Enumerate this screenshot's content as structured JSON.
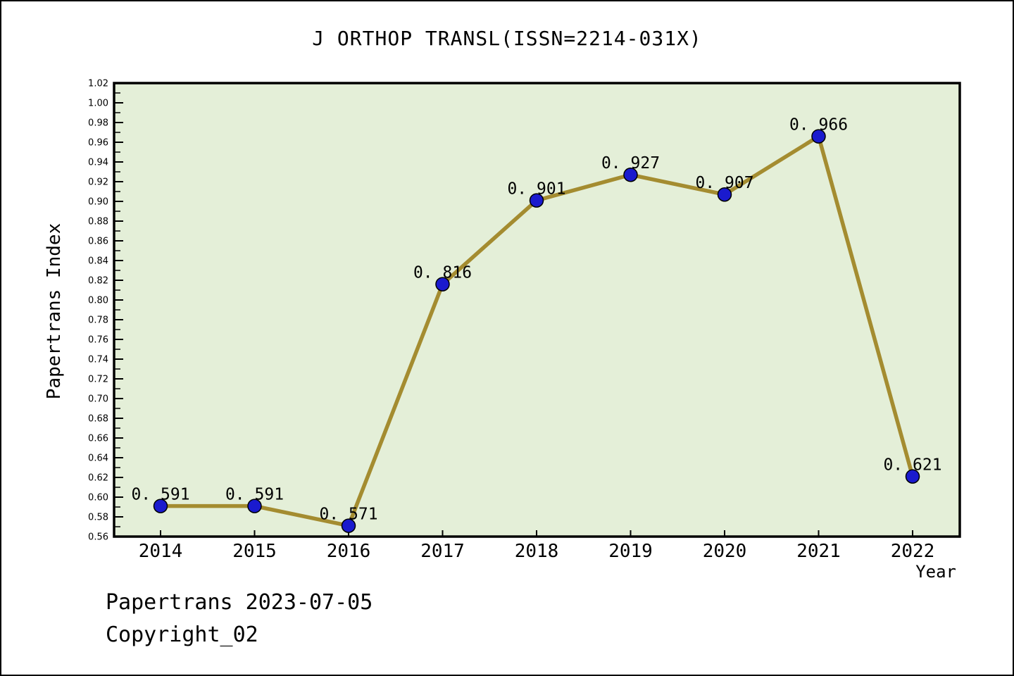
{
  "title": "J ORTHOP TRANSL(ISSN=2214-031X)",
  "footer": {
    "line1": "Papertrans 2023-07-05",
    "line2": "Copyright_02"
  },
  "chart_data": {
    "type": "line",
    "title": "J ORTHOP TRANSL(ISSN=2214-031X)",
    "xlabel": "Year",
    "ylabel": "Papertrans Index",
    "categories": [
      "2014",
      "2015",
      "2016",
      "2017",
      "2018",
      "2019",
      "2020",
      "2021",
      "2022"
    ],
    "series": [
      {
        "name": "Papertrans Index",
        "values": [
          0.591,
          0.591,
          0.571,
          0.816,
          0.901,
          0.927,
          0.907,
          0.966,
          0.621
        ],
        "point_labels": [
          "0.591",
          "0.591",
          "0.571",
          "0.816",
          "0.901",
          "0.927",
          "0.907",
          "0.966",
          "0.621"
        ]
      }
    ],
    "ylim": [
      0.56,
      1.02
    ],
    "ytick_major_step": 0.02,
    "ytick_minor_step": 0.01,
    "grid": false,
    "legend": "none",
    "colors": {
      "line": "#a48c30",
      "marker_fill": "#1a1ace",
      "marker_edge": "#000000",
      "plot_background": "#e4efd8",
      "page_background": "#ffffff",
      "axis": "#000000",
      "text": "#000000"
    }
  }
}
